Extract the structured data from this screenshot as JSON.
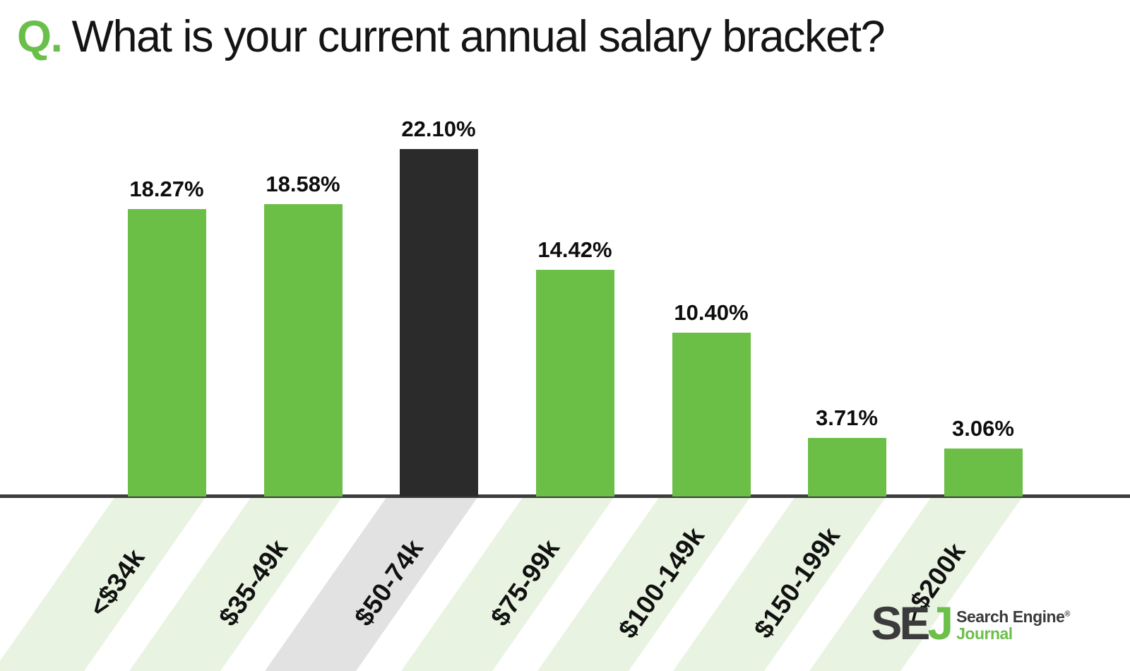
{
  "title": {
    "prefix": "Q.",
    "text": "What is your current annual salary bracket?"
  },
  "chart_data": {
    "type": "bar",
    "title": "What is your current annual salary bracket?",
    "categories": [
      "<$34k",
      "$35-49k",
      "$50-74k",
      "$75-99k",
      "$100-149k",
      "$150-199k",
      ">$200k"
    ],
    "values": [
      18.27,
      18.58,
      22.1,
      14.42,
      10.4,
      3.71,
      3.06
    ],
    "value_labels": [
      "18.27%",
      "18.58%",
      "22.10%",
      "14.42%",
      "10.40%",
      "3.71%",
      "3.06%"
    ],
    "highlight_index": 2,
    "xlabel": "",
    "ylabel": "",
    "ylim": [
      0,
      25
    ],
    "grid": false,
    "legend": false,
    "bar_color": "#6bbf47",
    "highlight_color": "#2b2b2b",
    "stripe_color": "#e9f3e1",
    "highlight_stripe_color": "#e2e2e2",
    "axis_color": "#3d3d3d",
    "label_color": "#111111"
  },
  "branding": {
    "logo_se": "SE",
    "logo_j": "J",
    "name_line1": "Search Engine",
    "registered": "®",
    "name_line2": "Journal",
    "dark": "#3b3b3b",
    "green": "#6cbf4a"
  }
}
